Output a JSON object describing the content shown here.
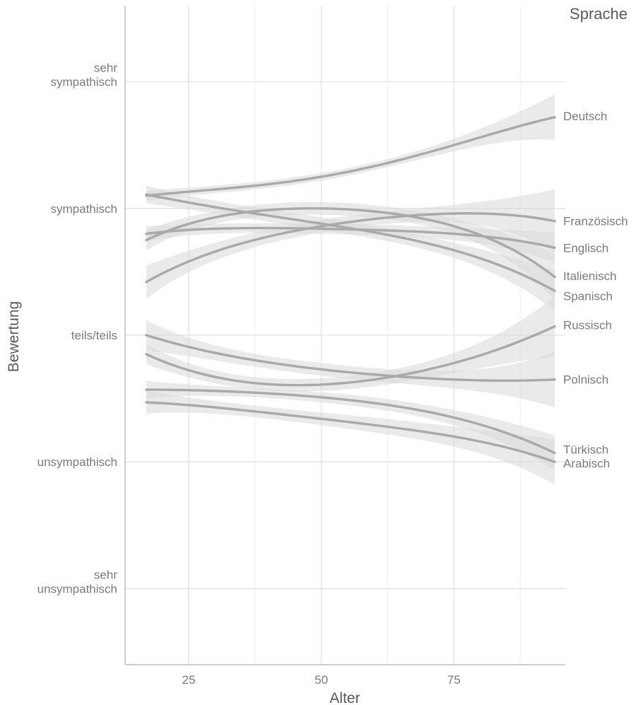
{
  "chart_data": {
    "type": "line",
    "xlabel": "Alter",
    "ylabel": "Bewertung",
    "legend_title": "Sprache",
    "xlim": [
      13,
      96
    ],
    "ylim": [
      -2.6,
      2.6
    ],
    "x_ticks": [
      25,
      50,
      75
    ],
    "y_ticks": [
      {
        "value": 2,
        "label": [
          "sehr",
          "sympathisch"
        ]
      },
      {
        "value": 1,
        "label": [
          "sympathisch"
        ]
      },
      {
        "value": 0,
        "label": [
          "teils/teils"
        ]
      },
      {
        "value": -1,
        "label": [
          "unsympathisch"
        ]
      },
      {
        "value": -2,
        "label": [
          "sehr",
          "unsympathisch"
        ]
      }
    ],
    "grid": true,
    "line_color": "#a9a9a9",
    "band_color": "#d9d9d9",
    "series": [
      {
        "name": "Deutsch",
        "x": [
          17,
          30,
          50,
          75,
          94
        ],
        "y": [
          1.1,
          1.15,
          1.25,
          1.5,
          1.72
        ],
        "band": [
          0.04,
          0.03,
          0.03,
          0.05,
          0.18
        ]
      },
      {
        "name": "Französisch",
        "x": [
          17,
          30,
          50,
          75,
          94
        ],
        "y": [
          0.42,
          0.66,
          0.86,
          0.96,
          0.9
        ],
        "band": [
          0.13,
          0.07,
          0.05,
          0.07,
          0.25
        ]
      },
      {
        "name": "Englisch",
        "x": [
          17,
          30,
          50,
          75,
          94
        ],
        "y": [
          0.8,
          0.84,
          0.84,
          0.8,
          0.69
        ],
        "band": [
          0.06,
          0.04,
          0.04,
          0.05,
          0.12
        ]
      },
      {
        "name": "Italienisch",
        "x": [
          17,
          30,
          50,
          75,
          94
        ],
        "y": [
          0.75,
          0.93,
          1.0,
          0.86,
          0.46
        ],
        "band": [
          0.08,
          0.05,
          0.05,
          0.06,
          0.18
        ]
      },
      {
        "name": "Spanisch",
        "x": [
          17,
          30,
          50,
          75,
          94
        ],
        "y": [
          1.11,
          1.01,
          0.88,
          0.67,
          0.35
        ],
        "band": [
          0.07,
          0.05,
          0.05,
          0.06,
          0.16
        ]
      },
      {
        "name": "Russisch",
        "x": [
          17,
          30,
          50,
          75,
          94
        ],
        "y": [
          -0.15,
          -0.33,
          -0.39,
          -0.22,
          0.07
        ],
        "band": [
          0.08,
          0.05,
          0.05,
          0.08,
          0.24
        ]
      },
      {
        "name": "Polnisch",
        "x": [
          17,
          30,
          50,
          75,
          94
        ],
        "y": [
          0.0,
          -0.14,
          -0.27,
          -0.35,
          -0.35
        ],
        "band": [
          0.12,
          0.06,
          0.05,
          0.07,
          0.22
        ]
      },
      {
        "name": "Türkisch",
        "x": [
          17,
          30,
          50,
          75,
          94
        ],
        "y": [
          -0.43,
          -0.44,
          -0.49,
          -0.65,
          -0.93
        ],
        "band": [
          0.07,
          0.04,
          0.04,
          0.06,
          0.14
        ]
      },
      {
        "name": "Arabisch",
        "x": [
          17,
          30,
          50,
          75,
          94
        ],
        "y": [
          -0.53,
          -0.57,
          -0.66,
          -0.8,
          -1.0
        ],
        "band": [
          0.09,
          0.05,
          0.05,
          0.08,
          0.18
        ]
      }
    ],
    "end_labels": [
      {
        "name": "Deutsch",
        "y": 1.73
      },
      {
        "name": "Französisch",
        "y": 0.9
      },
      {
        "name": "Englisch",
        "y": 0.69
      },
      {
        "name": "Italienisch",
        "y": 0.47
      },
      {
        "name": "Spanisch",
        "y": 0.31
      },
      {
        "name": "Russisch",
        "y": 0.08
      },
      {
        "name": "Polnisch",
        "y": -0.35
      },
      {
        "name": "Türkisch",
        "y": -0.9
      },
      {
        "name": "Arabisch",
        "y": -1.01
      }
    ]
  }
}
